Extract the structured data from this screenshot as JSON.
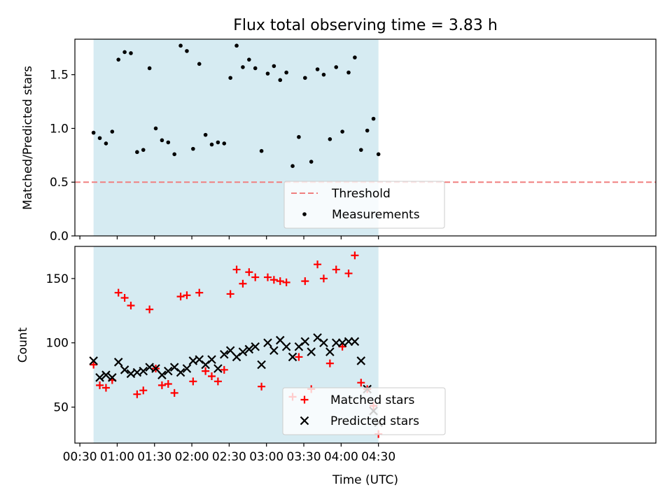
{
  "chart_data": [
    {
      "type": "scatter",
      "title": "Flux total observing time = 3.83 h",
      "ylabel": "Matched/Predicted stars",
      "xlabel": "",
      "x_unit": "minutes after 00:00 UTC",
      "xlim": [
        26,
        493
      ],
      "ylim": [
        0,
        1.83
      ],
      "yticks": [
        0.0,
        0.5,
        1.0,
        1.5
      ],
      "shaded_span": [
        41,
        270
      ],
      "threshold": {
        "value": 0.5,
        "name": "Threshold",
        "color": "#f08080",
        "style": "dashed"
      },
      "series": [
        {
          "name": "Measurements",
          "marker": "dot",
          "color": "#000000",
          "x": [
            41,
            46,
            51,
            56,
            61,
            66,
            71,
            76,
            81,
            86,
            91,
            96,
            101,
            106,
            111,
            116,
            121,
            126,
            131,
            136,
            141,
            146,
            151,
            156,
            161,
            166,
            171,
            176,
            181,
            186,
            191,
            196,
            201,
            206,
            211,
            216,
            221,
            226,
            231,
            236,
            241,
            246,
            251,
            256,
            261,
            266,
            270
          ],
          "y": [
            0.96,
            0.91,
            0.86,
            0.97,
            1.64,
            1.71,
            1.7,
            0.78,
            0.8,
            1.56,
            1.0,
            0.89,
            0.87,
            0.76,
            1.77,
            1.72,
            0.81,
            1.6,
            0.94,
            0.85,
            0.87,
            0.86,
            1.47,
            1.77,
            1.57,
            1.64,
            1.56,
            0.79,
            1.51,
            1.58,
            1.45,
            1.52,
            0.65,
            0.92,
            1.47,
            0.69,
            1.55,
            1.5,
            0.9,
            1.57,
            0.97,
            1.52,
            1.66,
            0.8,
            0.98,
            1.09,
            0.76
          ]
        }
      ],
      "legend_loc": "lower center"
    },
    {
      "type": "scatter",
      "title": "",
      "xlabel": "Time (UTC)",
      "ylabel": "Count",
      "x_unit": "minutes after 00:00 UTC",
      "xlim": [
        26,
        493
      ],
      "ylim": [
        22,
        175
      ],
      "yticks": [
        50,
        100,
        150
      ],
      "xticks": [
        30,
        60,
        90,
        120,
        150,
        180,
        210,
        240,
        270
      ],
      "xtick_labels": [
        "00:30",
        "01:00",
        "01:30",
        "02:00",
        "02:30",
        "03:00",
        "03:30",
        "04:00",
        "04:30"
      ],
      "shaded_span": [
        41,
        270
      ],
      "series": [
        {
          "name": "Matched stars",
          "marker": "plus",
          "color": "#ff0000",
          "x": [
            41,
            46,
            51,
            56,
            61,
            66,
            71,
            76,
            81,
            86,
            91,
            96,
            101,
            106,
            111,
            116,
            121,
            126,
            131,
            136,
            141,
            146,
            151,
            156,
            161,
            166,
            171,
            176,
            181,
            186,
            191,
            196,
            201,
            206,
            211,
            216,
            221,
            226,
            231,
            236,
            241,
            246,
            251,
            256,
            261,
            266,
            270
          ],
          "y": [
            83,
            67,
            65,
            71,
            139,
            135,
            129,
            60,
            63,
            126,
            80,
            67,
            68,
            61,
            136,
            137,
            70,
            139,
            78,
            74,
            70,
            79,
            138,
            157,
            146,
            155,
            151,
            66,
            151,
            149,
            148,
            147,
            58,
            89,
            148,
            64,
            161,
            150,
            84,
            157,
            97,
            154,
            168,
            69,
            64,
            51,
            29
          ]
        },
        {
          "name": "Predicted stars",
          "marker": "x",
          "color": "#000000",
          "x": [
            41,
            46,
            51,
            56,
            61,
            66,
            71,
            76,
            81,
            86,
            91,
            96,
            101,
            106,
            111,
            116,
            121,
            126,
            131,
            136,
            141,
            146,
            151,
            156,
            161,
            166,
            171,
            176,
            181,
            186,
            191,
            196,
            201,
            206,
            211,
            216,
            221,
            226,
            231,
            236,
            241,
            246,
            251,
            256,
            261,
            266,
            270
          ],
          "y": [
            86,
            73,
            75,
            73,
            85,
            79,
            76,
            77,
            78,
            81,
            80,
            75,
            78,
            81,
            77,
            80,
            86,
            87,
            83,
            87,
            80,
            91,
            94,
            89,
            93,
            95,
            97,
            83,
            100,
            94,
            102,
            97,
            89,
            97,
            101,
            93,
            104,
            100,
            93,
            100,
            100,
            101,
            101,
            86,
            64,
            47,
            38
          ]
        }
      ],
      "legend_loc": "lower center"
    }
  ]
}
